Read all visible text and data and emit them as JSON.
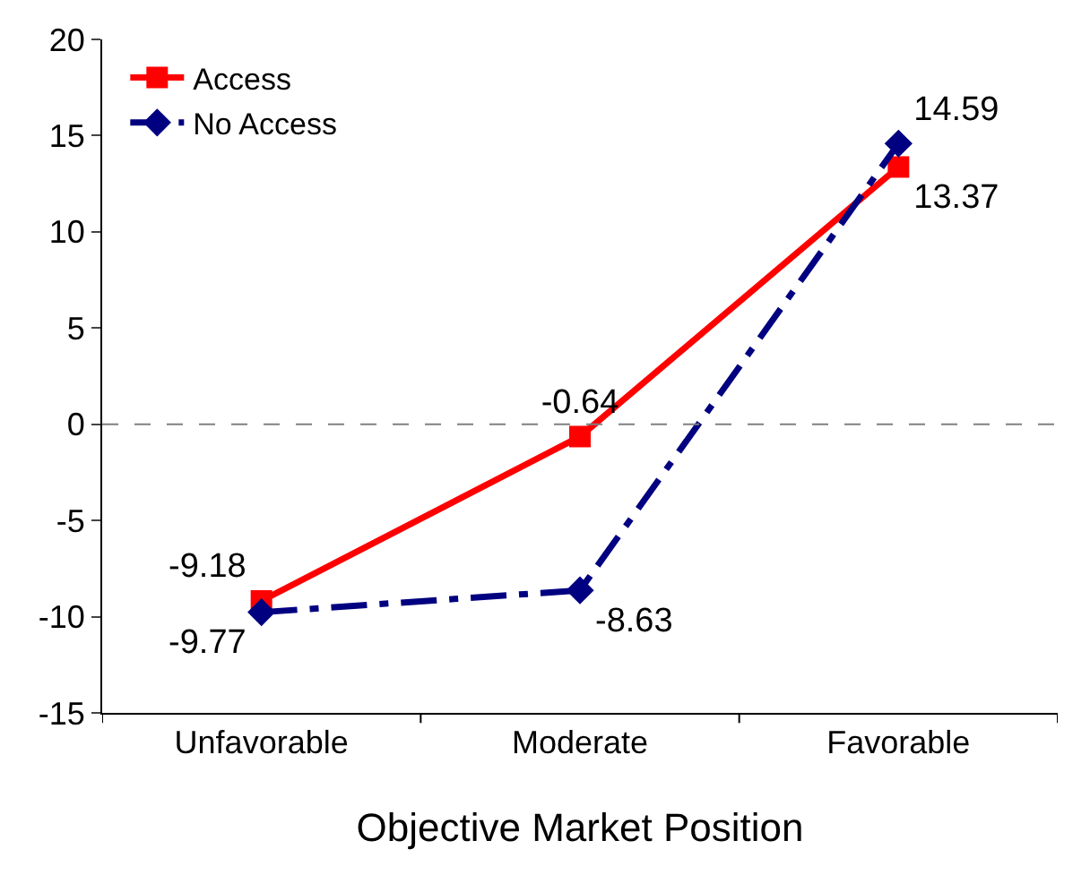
{
  "chart_data": {
    "type": "line",
    "xlabel": "Objective Market Position",
    "categories": [
      "Unfavorable",
      "Moderate",
      "Favorable"
    ],
    "series": [
      {
        "name": "Access",
        "color": "#ff0000",
        "values": [
          -9.18,
          -0.64,
          13.37
        ],
        "marker": "square",
        "line_style": "solid"
      },
      {
        "name": "No Access",
        "color": "#000080",
        "values": [
          -9.77,
          -8.63,
          14.59
        ],
        "marker": "diamond",
        "line_style": "dashed"
      }
    ],
    "ylim": [
      -15,
      20
    ],
    "yticks": [
      -15,
      -10,
      -5,
      0,
      5,
      10,
      15,
      20
    ],
    "ref_lines": [
      {
        "axis": "y",
        "value": 0,
        "color": "#808080",
        "line_style": "dashed"
      }
    ],
    "data_labels": true,
    "legend": "top left"
  }
}
